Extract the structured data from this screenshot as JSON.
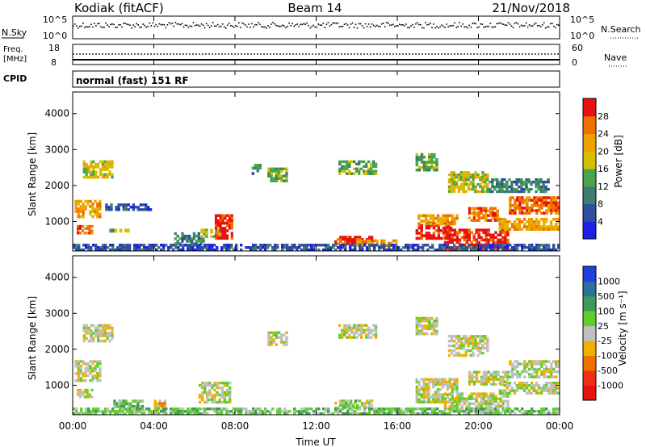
{
  "header": {
    "radar": "Kodiak (fitACF)",
    "beam": "Beam 14",
    "date": "21/Nov/2018"
  },
  "noise_panel": {
    "left_label": "N.Sky",
    "right_label": "N.Search",
    "ticks": [
      "10^5",
      "10^0"
    ],
    "right_ticks": [
      "10^5",
      "10^0"
    ]
  },
  "freq_panel": {
    "left_label_line1": "Freq.",
    "left_label_line2": "[MHz]",
    "left_ticks": [
      "18",
      "8"
    ],
    "right_label": "Nave",
    "right_ticks": [
      "60",
      "0"
    ]
  },
  "cpid": {
    "label": "CPID",
    "value": "normal (fast) 151 RF"
  },
  "chart_data": [
    {
      "type": "heatmap",
      "title": "",
      "xlabel": "Time UT",
      "ylabel": "Slant Range [km]",
      "x_ticks": [
        "00:00",
        "04:00",
        "08:00",
        "12:00",
        "16:00",
        "20:00",
        "00:00"
      ],
      "xlim_hours": [
        0,
        24
      ],
      "y_ticks": [
        1000,
        2000,
        3000,
        4000
      ],
      "ylim": [
        180,
        4600
      ],
      "colorbar": {
        "label": "Power [dB]",
        "ticks": [
          4,
          8,
          12,
          16,
          20,
          24,
          28
        ],
        "range": [
          0,
          32
        ],
        "colors": [
          "#1f1fe8",
          "#2e4fa0",
          "#3f7d6e",
          "#4aa64a",
          "#d4c000",
          "#f0a000",
          "#f07000",
          "#e81010"
        ]
      },
      "regions": [
        {
          "t0": 0.1,
          "t1": 1.4,
          "r0": 1100,
          "r1": 1600,
          "level": 5
        },
        {
          "t0": 0.2,
          "t1": 1.0,
          "r0": 650,
          "r1": 900,
          "level": 6
        },
        {
          "t0": 0.5,
          "t1": 2.0,
          "r0": 2200,
          "r1": 2700,
          "level": 4
        },
        {
          "t0": 1.8,
          "t1": 2.8,
          "r0": 700,
          "r1": 800,
          "level": 3
        },
        {
          "t0": 1.6,
          "t1": 3.9,
          "r0": 1300,
          "r1": 1500,
          "level": 1
        },
        {
          "t0": 5.0,
          "t1": 6.5,
          "r0": 350,
          "r1": 700,
          "level": 2
        },
        {
          "t0": 6.3,
          "t1": 7.5,
          "r0": 550,
          "r1": 800,
          "level": 4
        },
        {
          "t0": 7.0,
          "t1": 7.9,
          "r0": 500,
          "r1": 1200,
          "level": 7
        },
        {
          "t0": 9.6,
          "t1": 10.6,
          "r0": 2100,
          "r1": 2500,
          "level": 3
        },
        {
          "t0": 8.7,
          "t1": 9.3,
          "r0": 2300,
          "r1": 2600,
          "level": 2
        },
        {
          "t0": 13.1,
          "t1": 15.0,
          "r0": 2300,
          "r1": 2700,
          "level": 3
        },
        {
          "t0": 12.9,
          "t1": 14.8,
          "r0": 350,
          "r1": 600,
          "level": 7
        },
        {
          "t0": 14.0,
          "t1": 16.0,
          "r0": 300,
          "r1": 500,
          "level": 5
        },
        {
          "t0": 16.9,
          "t1": 18.7,
          "r0": 500,
          "r1": 1000,
          "level": 7
        },
        {
          "t0": 17.0,
          "t1": 19.0,
          "r0": 900,
          "r1": 1200,
          "level": 5
        },
        {
          "t0": 18.3,
          "t1": 21.5,
          "r0": 180,
          "r1": 800,
          "level": 7
        },
        {
          "t0": 19.5,
          "t1": 21.0,
          "r0": 1000,
          "r1": 1400,
          "level": 6
        },
        {
          "t0": 21.5,
          "t1": 24.0,
          "r0": 1200,
          "r1": 1700,
          "level": 6
        },
        {
          "t0": 21.0,
          "t1": 24.0,
          "r0": 750,
          "r1": 1100,
          "level": 5
        },
        {
          "t0": 18.5,
          "t1": 20.5,
          "r0": 1800,
          "r1": 2400,
          "level": 4
        },
        {
          "t0": 16.9,
          "t1": 18.0,
          "r0": 2400,
          "r1": 2900,
          "level": 3
        },
        {
          "t0": 20.5,
          "t1": 23.5,
          "r0": 1800,
          "r1": 2200,
          "level": 2
        },
        {
          "t0": 0.0,
          "t1": 24.0,
          "r0": 180,
          "r1": 380,
          "level": 1
        }
      ]
    },
    {
      "type": "heatmap",
      "title": "",
      "xlabel": "Time UT",
      "ylabel": "Slant Range [km]",
      "x_ticks": [
        "00:00",
        "04:00",
        "08:00",
        "12:00",
        "16:00",
        "20:00",
        "00:00"
      ],
      "xlim_hours": [
        0,
        24
      ],
      "y_ticks": [
        1000,
        2000,
        3000,
        4000
      ],
      "ylim": [
        180,
        4600
      ],
      "colorbar": {
        "label": "Velocity [m s⁻¹]",
        "ticks": [
          "1000",
          "500",
          "100",
          "25",
          "-25",
          "-100",
          "-500",
          "-1000"
        ],
        "colors": [
          "#1f3fe0",
          "#2e6ea0",
          "#3f9a5a",
          "#5fcf30",
          "#c0c0c0",
          "#f0b000",
          "#f07000",
          "#f03010",
          "#e81010"
        ]
      },
      "regions": [
        {
          "t0": 0.1,
          "t1": 1.4,
          "r0": 1100,
          "r1": 1700,
          "level": 4
        },
        {
          "t0": 0.2,
          "t1": 1.0,
          "r0": 650,
          "r1": 900,
          "level": 4
        },
        {
          "t0": 0.5,
          "t1": 2.0,
          "r0": 2200,
          "r1": 2700,
          "level": 4
        },
        {
          "t0": 2.0,
          "t1": 3.5,
          "r0": 300,
          "r1": 600,
          "level": 3
        },
        {
          "t0": 4.0,
          "t1": 4.6,
          "r0": 250,
          "r1": 600,
          "level": 5
        },
        {
          "t0": 6.2,
          "t1": 7.8,
          "r0": 500,
          "r1": 1100,
          "level": 4
        },
        {
          "t0": 9.6,
          "t1": 10.6,
          "r0": 2100,
          "r1": 2500,
          "level": 4
        },
        {
          "t0": 13.1,
          "t1": 15.0,
          "r0": 2300,
          "r1": 2700,
          "level": 4
        },
        {
          "t0": 12.9,
          "t1": 14.8,
          "r0": 350,
          "r1": 600,
          "level": 4
        },
        {
          "t0": 13.3,
          "t1": 14.0,
          "r0": 350,
          "r1": 600,
          "level": 3
        },
        {
          "t0": 16.9,
          "t1": 19.0,
          "r0": 500,
          "r1": 1200,
          "level": 4
        },
        {
          "t0": 18.3,
          "t1": 21.5,
          "r0": 250,
          "r1": 800,
          "level": 4
        },
        {
          "t0": 19.5,
          "t1": 21.5,
          "r0": 1000,
          "r1": 1400,
          "level": 4
        },
        {
          "t0": 21.5,
          "t1": 24.0,
          "r0": 1200,
          "r1": 1700,
          "level": 4
        },
        {
          "t0": 21.0,
          "t1": 24.0,
          "r0": 750,
          "r1": 1100,
          "level": 4
        },
        {
          "t0": 18.5,
          "t1": 20.5,
          "r0": 1800,
          "r1": 2400,
          "level": 4
        },
        {
          "t0": 16.9,
          "t1": 18.0,
          "r0": 2400,
          "r1": 2900,
          "level": 4
        },
        {
          "t0": 0.0,
          "t1": 24.0,
          "r0": 180,
          "r1": 380,
          "level": 3
        }
      ]
    }
  ]
}
